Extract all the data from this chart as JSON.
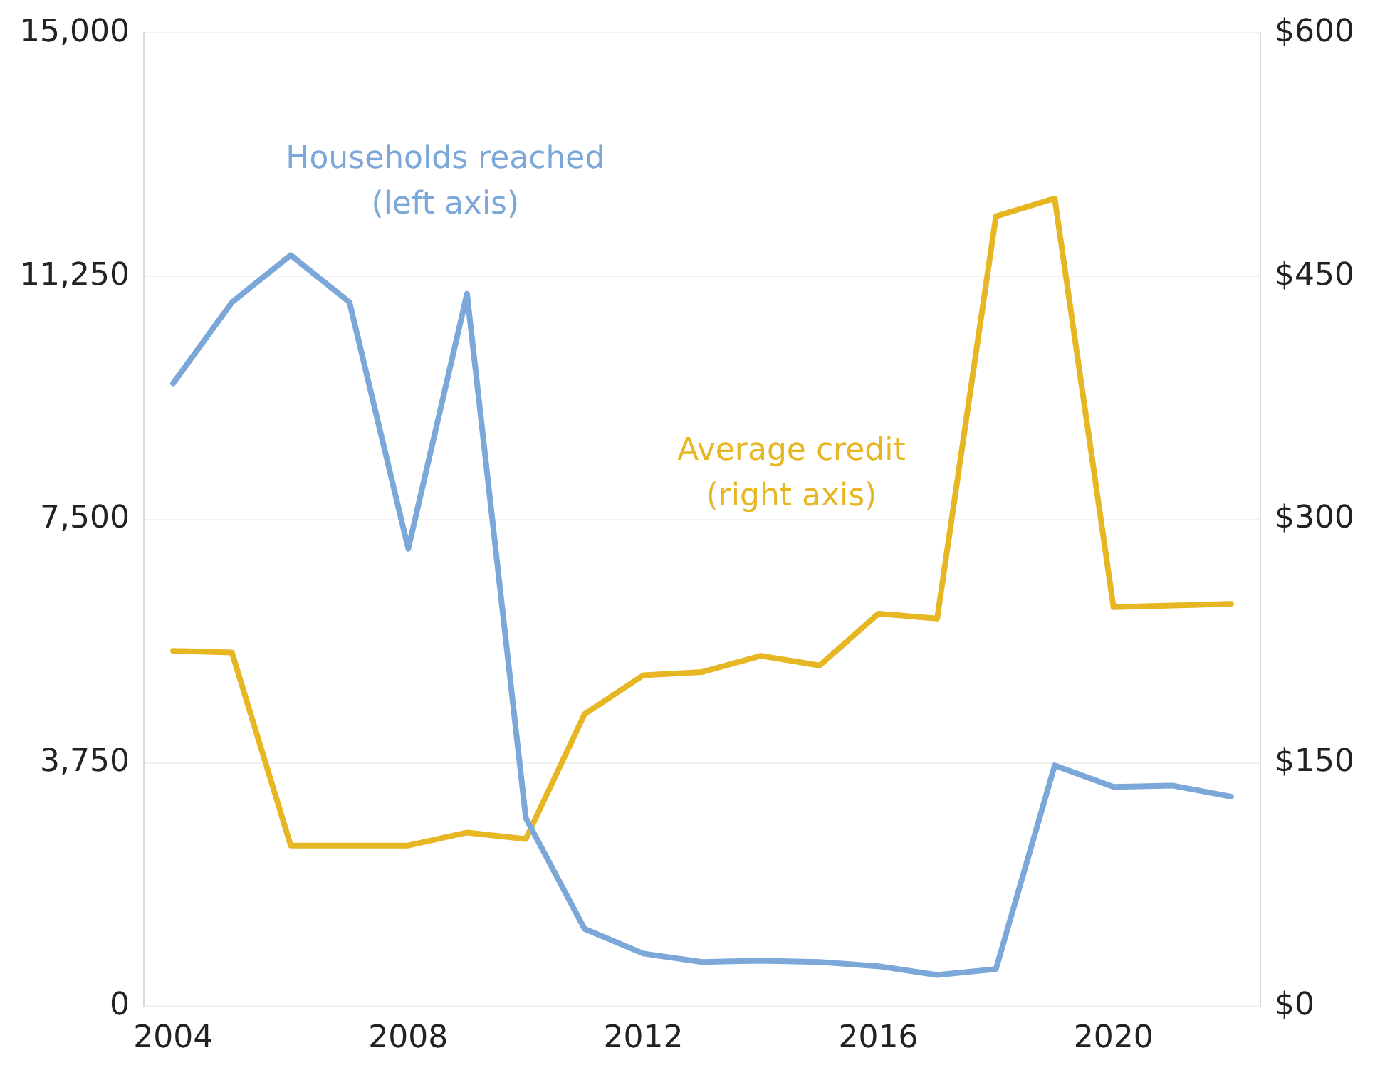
{
  "chart_data": {
    "type": "line",
    "x": [
      2004,
      2005,
      2006,
      2007,
      2008,
      2009,
      2010,
      2011,
      2012,
      2013,
      2014,
      2015,
      2016,
      2017,
      2018,
      2019,
      2020,
      2021,
      2022
    ],
    "series": [
      {
        "name": "Households reached\n(left axis)",
        "color": "#7ba7d9",
        "values": [
          9600,
          10850,
          11575,
          10850,
          7050,
          10980,
          2900,
          1190,
          810,
          680,
          700,
          680,
          615,
          480,
          570,
          3710,
          3380,
          3400,
          3230
        ]
      },
      {
        "name": "Average credit\n(right axis)",
        "color": "#e6b623",
        "axis": "y2",
        "values": [
          219,
          218,
          99,
          99,
          99,
          107,
          103,
          180,
          204,
          206,
          216,
          210,
          242,
          239,
          487,
          498,
          246,
          247,
          248
        ]
      }
    ],
    "xlim": [
      2003.5,
      2022.5
    ],
    "xticks": [
      2004,
      2008,
      2012,
      2016,
      2020
    ],
    "ylim": [
      0,
      15000
    ],
    "yticks": [
      {
        "value": 0,
        "label": "0"
      },
      {
        "value": 3750,
        "label": "3,750"
      },
      {
        "value": 7500,
        "label": "7,500"
      },
      {
        "value": 11250,
        "label": "11,250"
      },
      {
        "value": 15000,
        "label": "15,000"
      }
    ],
    "y2lim": [
      0,
      600
    ],
    "y2ticks": [
      {
        "value": 0,
        "label": "$0"
      },
      {
        "value": 150,
        "label": "$150"
      },
      {
        "value": 300,
        "label": "$300"
      },
      {
        "value": 450,
        "label": "$450"
      },
      {
        "value": 600,
        "label": "$600"
      }
    ],
    "grid": "y",
    "legend": false,
    "marker": "none",
    "line_style": "solid"
  }
}
